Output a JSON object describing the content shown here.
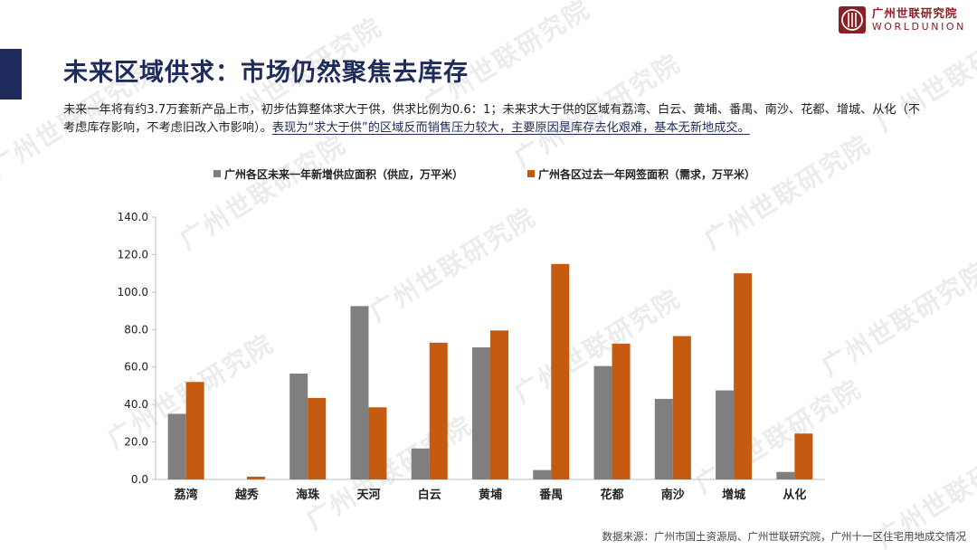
{
  "watermark_text": "广州世联研究院",
  "logo": {
    "cn": "广州世联研究院",
    "en": "WORLDUNION",
    "color": "#8a1f24"
  },
  "title": "未来区域供求：市场仍然聚焦去库存",
  "description": {
    "plain": "未来一年将有约3.7万套新产品上市，初步估算整体求大于供，供求比例为0.6：1；未来求大于供的区域有荔湾、白云、黄埔、番禺、南沙、花都、增城、从化（不考虑库存影响，不考虑旧改入市影响）。",
    "highlight": "表现为“求大于供”的区域反而销售压力较大，主要原因是库存去化艰难，基本无新地成交。"
  },
  "source": "数据来源：广州市国土资源局、广州世联研究院，广州十一区住宅用地成交情况",
  "colors": {
    "accent": "#1f2b5a",
    "supply": "#7f7f7f",
    "demand": "#c55a11"
  },
  "chart_data": {
    "type": "bar",
    "categories": [
      "荔湾",
      "越秀",
      "海珠",
      "天河",
      "白云",
      "黄埔",
      "番禺",
      "花都",
      "南沙",
      "增城",
      "从化"
    ],
    "series": [
      {
        "name": "广州各区未来一年新增供应面积（供应，万平米）",
        "color": "#7f7f7f",
        "values": [
          35.0,
          0.0,
          56.5,
          92.5,
          16.5,
          70.5,
          5.0,
          60.5,
          43.0,
          47.5,
          4.0
        ]
      },
      {
        "name": "广州各区过去一年网签面积（需求，万平米）",
        "color": "#c55a11",
        "values": [
          52.0,
          1.5,
          43.5,
          38.5,
          73.0,
          79.5,
          115.0,
          72.5,
          76.5,
          110.0,
          24.5
        ]
      }
    ],
    "ylim": [
      0,
      140
    ],
    "yticks": [
      "0.0",
      "20.0",
      "40.0",
      "60.0",
      "80.0",
      "100.0",
      "120.0",
      "140.0"
    ],
    "legend_position": "top",
    "grid": false
  }
}
